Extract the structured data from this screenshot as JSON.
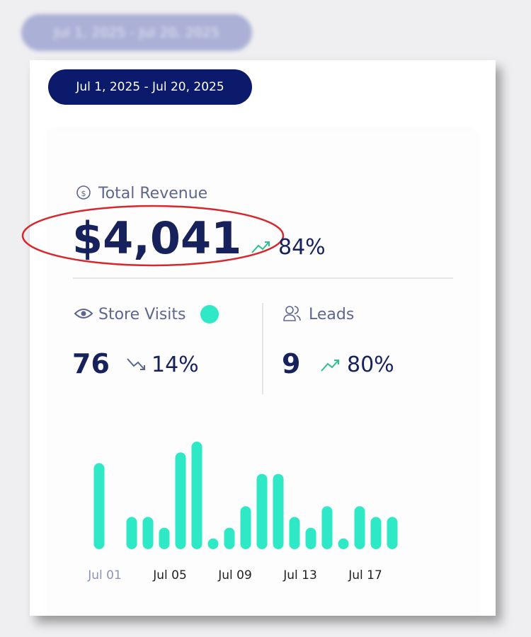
{
  "date_range": "Jul 1, 2025 - Jul 20, 2025",
  "revenue": {
    "label": "Total Revenue",
    "value": "$4,041",
    "change": "84%"
  },
  "store_visits": {
    "label": "Store Visits",
    "value": "76",
    "change": "14%"
  },
  "leads": {
    "label": "Leads",
    "value": "9",
    "change": "80%"
  },
  "chart_data": {
    "type": "bar",
    "categories": [
      "Jul 01",
      null,
      null,
      null,
      "Jul 05",
      null,
      null,
      null,
      "Jul 09",
      null,
      null,
      null,
      "Jul 13",
      null,
      null,
      null,
      "Jul 17",
      null,
      null,
      null
    ],
    "values": [
      8,
      0,
      3,
      3,
      2,
      9,
      10,
      1,
      2,
      4,
      7,
      7,
      3,
      2,
      4,
      1,
      4,
      3,
      3,
      0
    ],
    "color": "#2ee8c6"
  }
}
